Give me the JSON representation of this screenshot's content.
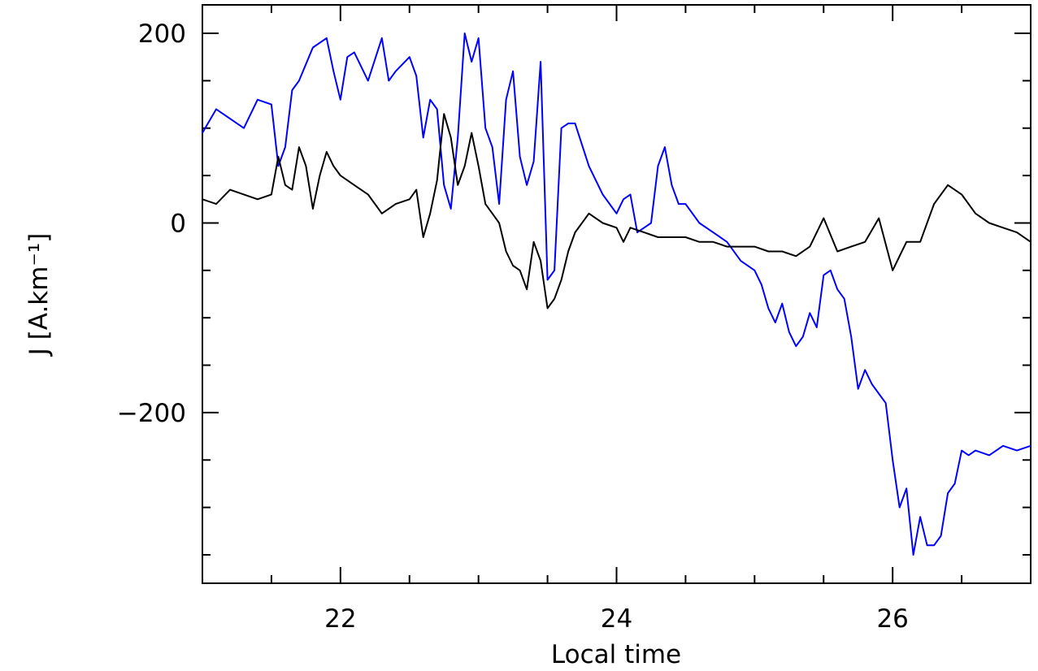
{
  "chart_data": {
    "type": "line",
    "xlabel": "Local time",
    "ylabel": "J [A.km⁻¹]",
    "xlim": [
      21,
      27
    ],
    "ylim": [
      -380,
      230
    ],
    "x_ticks": [
      22,
      24,
      26
    ],
    "x_tick_labels": [
      "22",
      "24",
      "26"
    ],
    "y_ticks": [
      200,
      0,
      -200
    ],
    "y_tick_labels": [
      "200",
      "0",
      "−200"
    ],
    "x_minor_step": 0.5,
    "y_minor_step": 50,
    "grid": false,
    "series": [
      {
        "color": "#0000ff",
        "x": [
          21.0,
          21.1,
          21.2,
          21.3,
          21.4,
          21.5,
          21.55,
          21.6,
          21.65,
          21.7,
          21.8,
          21.9,
          21.95,
          22.0,
          22.05,
          22.1,
          22.2,
          22.3,
          22.35,
          22.4,
          22.5,
          22.55,
          22.6,
          22.65,
          22.7,
          22.75,
          22.8,
          22.85,
          22.9,
          22.95,
          23.0,
          23.05,
          23.1,
          23.15,
          23.2,
          23.25,
          23.3,
          23.35,
          23.4,
          23.45,
          23.5,
          23.55,
          23.6,
          23.65,
          23.7,
          23.8,
          23.9,
          24.0,
          24.05,
          24.1,
          24.15,
          24.2,
          24.25,
          24.3,
          24.35,
          24.4,
          24.45,
          24.5,
          24.6,
          24.7,
          24.8,
          24.9,
          25.0,
          25.05,
          25.1,
          25.15,
          25.2,
          25.25,
          25.3,
          25.35,
          25.4,
          25.45,
          25.5,
          25.55,
          25.6,
          25.65,
          25.7,
          25.75,
          25.8,
          25.85,
          25.9,
          25.95,
          26.0,
          26.05,
          26.1,
          26.15,
          26.2,
          26.25,
          26.3,
          26.35,
          26.4,
          26.45,
          26.5,
          26.55,
          26.6,
          26.7,
          26.8,
          26.9,
          27.0
        ],
        "values": [
          95,
          120,
          110,
          100,
          130,
          125,
          60,
          80,
          140,
          150,
          185,
          195,
          160,
          130,
          175,
          180,
          150,
          195,
          150,
          160,
          175,
          155,
          90,
          130,
          120,
          40,
          15,
          90,
          200,
          170,
          195,
          100,
          80,
          20,
          130,
          160,
          70,
          40,
          65,
          170,
          -60,
          -50,
          100,
          105,
          105,
          60,
          30,
          10,
          25,
          30,
          -10,
          -5,
          0,
          60,
          80,
          40,
          20,
          20,
          0,
          -10,
          -20,
          -40,
          -50,
          -65,
          -90,
          -105,
          -85,
          -115,
          -130,
          -120,
          -95,
          -110,
          -55,
          -50,
          -70,
          -80,
          -120,
          -175,
          -155,
          -170,
          -180,
          -190,
          -250,
          -300,
          -280,
          -350,
          -310,
          -340,
          -340,
          -330,
          -285,
          -275,
          -240,
          -245,
          -240,
          -245,
          -235,
          -240,
          -235
        ]
      },
      {
        "color": "#000000",
        "x": [
          21.0,
          21.1,
          21.2,
          21.3,
          21.4,
          21.5,
          21.55,
          21.6,
          21.65,
          21.7,
          21.75,
          21.8,
          21.85,
          21.9,
          21.95,
          22.0,
          22.1,
          22.2,
          22.3,
          22.4,
          22.5,
          22.55,
          22.6,
          22.65,
          22.7,
          22.75,
          22.8,
          22.85,
          22.9,
          22.95,
          23.0,
          23.05,
          23.1,
          23.15,
          23.2,
          23.25,
          23.3,
          23.35,
          23.4,
          23.45,
          23.5,
          23.55,
          23.6,
          23.65,
          23.7,
          23.8,
          23.9,
          24.0,
          24.05,
          24.1,
          24.2,
          24.3,
          24.4,
          24.5,
          24.6,
          24.7,
          24.8,
          24.9,
          25.0,
          25.1,
          25.2,
          25.3,
          25.4,
          25.5,
          25.6,
          25.7,
          25.8,
          25.9,
          26.0,
          26.1,
          26.2,
          26.3,
          26.4,
          26.5,
          26.6,
          26.7,
          26.8,
          26.9,
          27.0
        ],
        "values": [
          25,
          20,
          35,
          30,
          25,
          30,
          70,
          40,
          35,
          80,
          60,
          15,
          50,
          75,
          60,
          50,
          40,
          30,
          10,
          20,
          25,
          35,
          -15,
          10,
          45,
          115,
          90,
          40,
          60,
          95,
          60,
          20,
          10,
          0,
          -30,
          -45,
          -50,
          -70,
          -20,
          -40,
          -90,
          -80,
          -60,
          -30,
          -10,
          10,
          0,
          -5,
          -20,
          -5,
          -10,
          -15,
          -15,
          -15,
          -20,
          -20,
          -25,
          -25,
          -25,
          -30,
          -30,
          -35,
          -25,
          5,
          -30,
          -25,
          -20,
          5,
          -50,
          -20,
          -20,
          20,
          40,
          30,
          10,
          0,
          -5,
          -10,
          -20
        ]
      }
    ]
  }
}
